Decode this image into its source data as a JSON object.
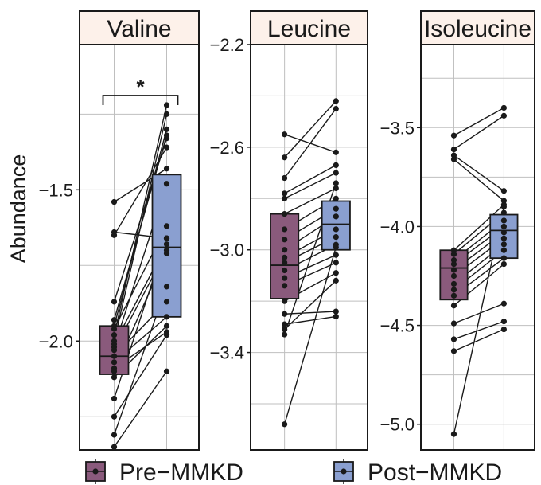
{
  "chart_data": [
    {
      "type": "box",
      "title": "Valine",
      "xlabel": "",
      "ylabel": "Abundance",
      "ylim": [
        -2.36,
        -1.02
      ],
      "yticks": [
        -1.5,
        -2.0
      ],
      "ytick_labels": [
        "-1.5",
        "-2.0"
      ],
      "grid": true,
      "categories": [
        "Pre-MMKD",
        "Post-MMKD"
      ],
      "significance": "*",
      "box": {
        "Pre-MMKD": {
          "q1": -2.11,
          "median": -2.05,
          "q3": -1.95
        },
        "Post-MMKD": {
          "q1": -1.92,
          "median": -1.69,
          "q3": -1.45
        }
      },
      "pairs": [
        [
          -1.54,
          -1.43
        ],
        [
          -1.64,
          -1.66
        ],
        [
          -1.65,
          -1.36
        ],
        [
          -1.87,
          -1.33
        ],
        [
          -1.93,
          -1.32
        ],
        [
          -1.95,
          -1.3
        ],
        [
          -1.96,
          -1.62
        ],
        [
          -1.98,
          -1.22
        ],
        [
          -2.0,
          -1.25
        ],
        [
          -2.01,
          -1.68
        ],
        [
          -2.02,
          -1.48
        ],
        [
          -2.03,
          -1.7
        ],
        [
          -2.05,
          -1.87
        ],
        [
          -2.07,
          -1.92
        ],
        [
          -2.09,
          -1.97
        ],
        [
          -2.1,
          -1.71
        ],
        [
          -2.12,
          -1.95
        ],
        [
          -2.19,
          -1.66
        ],
        [
          -2.25,
          -1.98
        ],
        [
          -2.31,
          -1.82
        ],
        [
          -2.35,
          -2.1
        ]
      ]
    },
    {
      "type": "box",
      "title": "Leucine",
      "ylim": [
        -3.78,
        -2.2
      ],
      "yticks": [
        -2.2,
        -2.6,
        -3.0,
        -3.4
      ],
      "ytick_labels": [
        "-2.2",
        "-2.6",
        "-3.0",
        "-3.4"
      ],
      "grid": true,
      "categories": [
        "Pre-MMKD",
        "Post-MMKD"
      ],
      "box": {
        "Pre-MMKD": {
          "q1": -3.19,
          "median": -3.06,
          "q3": -2.86
        },
        "Post-MMKD": {
          "q1": -3.0,
          "median": -2.9,
          "q3": -2.81
        }
      },
      "pairs": [
        [
          -2.55,
          -2.62
        ],
        [
          -2.64,
          -2.42
        ],
        [
          -2.72,
          -2.45
        ],
        [
          -2.78,
          -2.67
        ],
        [
          -2.8,
          -2.7
        ],
        [
          -2.86,
          -2.76
        ],
        [
          -2.92,
          -2.8
        ],
        [
          -2.96,
          -2.84
        ],
        [
          -3.0,
          -2.87
        ],
        [
          -3.03,
          -2.92
        ],
        [
          -3.05,
          -2.95
        ],
        [
          -3.08,
          -2.98
        ],
        [
          -3.11,
          -3.02
        ],
        [
          -3.14,
          -3.05
        ],
        [
          -3.2,
          -3.09
        ],
        [
          -3.25,
          -3.24
        ],
        [
          -3.29,
          -3.26
        ],
        [
          -3.31,
          -3.12
        ],
        [
          -3.33,
          -2.74
        ],
        [
          -3.68,
          -2.99
        ]
      ]
    },
    {
      "type": "box",
      "title": "Isoleucine",
      "ylim": [
        -5.13,
        -3.08
      ],
      "yticks": [
        -3.5,
        -4.0,
        -4.5,
        -5.0
      ],
      "ytick_labels": [
        "-3.5",
        "-4.0",
        "-4.5",
        "-5.0"
      ],
      "grid": true,
      "categories": [
        "Pre-MMKD",
        "Post-MMKD"
      ],
      "box": {
        "Pre-MMKD": {
          "q1": -4.37,
          "median": -4.21,
          "q3": -4.12
        },
        "Post-MMKD": {
          "q1": -4.16,
          "median": -4.02,
          "q3": -3.94
        }
      },
      "pairs": [
        [
          -3.54,
          -3.4
        ],
        [
          -3.61,
          -3.44
        ],
        [
          -3.64,
          -3.82
        ],
        [
          -3.66,
          -3.87
        ],
        [
          -4.12,
          -3.89
        ],
        [
          -4.14,
          -3.93
        ],
        [
          -4.17,
          -3.97
        ],
        [
          -4.19,
          -4.0
        ],
        [
          -4.22,
          -4.03
        ],
        [
          -4.25,
          -4.06
        ],
        [
          -4.29,
          -4.09
        ],
        [
          -4.32,
          -4.12
        ],
        [
          -4.35,
          -4.16
        ],
        [
          -4.4,
          -4.19
        ],
        [
          -4.49,
          -4.39
        ],
        [
          -4.57,
          -4.48
        ],
        [
          -4.63,
          -4.52
        ],
        [
          -5.05,
          -3.9
        ]
      ]
    }
  ],
  "legend": {
    "items": [
      {
        "label": "Pre−MMKD",
        "color": "#8a5a7c"
      },
      {
        "label": "Post−MMKD",
        "color": "#8a9fd0"
      }
    ]
  },
  "colors": {
    "pre_fill": "#8a5a7c",
    "post_fill": "#8a9fd0",
    "strip_fill": "#fdf1ea",
    "grid": "#bfbfbf",
    "line": "#1a1a1a"
  }
}
